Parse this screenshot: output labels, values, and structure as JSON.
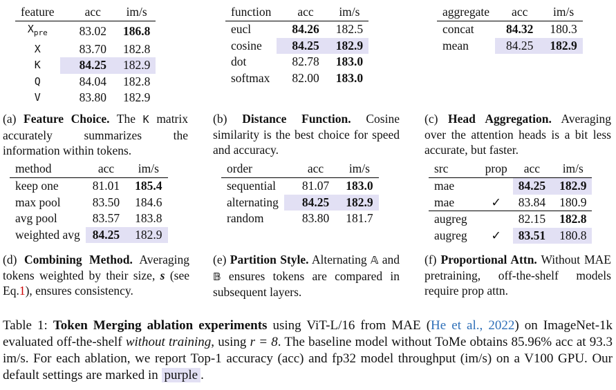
{
  "tables": {
    "a": {
      "headers": [
        "feature",
        "acc",
        "im/s"
      ],
      "rows": [
        {
          "name": "X",
          "sub": "pre",
          "acc": "83.02",
          "ims": "186.8"
        },
        {
          "name": "X",
          "acc": "83.70",
          "ims": "182.8"
        },
        {
          "name": "K",
          "acc": "84.25",
          "ims": "182.9"
        },
        {
          "name": "Q",
          "acc": "84.04",
          "ims": "182.8"
        },
        {
          "name": "V",
          "acc": "83.80",
          "ims": "182.9"
        }
      ],
      "caption": {
        "label": "(a)",
        "title": "Feature Choice.",
        "pre": "The",
        "code": "K",
        "post": "matrix accurately summarizes the information within tokens."
      }
    },
    "b": {
      "headers": [
        "function",
        "acc",
        "im/s"
      ],
      "rows": [
        {
          "name": "eucl",
          "acc": "84.26",
          "ims": "182.5"
        },
        {
          "name": "cosine",
          "acc": "84.25",
          "ims": "182.9"
        },
        {
          "name": "dot",
          "acc": "82.78",
          "ims": "183.0"
        },
        {
          "name": "softmax",
          "acc": "82.00",
          "ims": "183.0"
        }
      ],
      "caption": {
        "label": "(b)",
        "title": "Distance Function.",
        "text": "Cosine similarity is the best choice for speed and accuracy."
      }
    },
    "c": {
      "headers": [
        "aggregate",
        "acc",
        "im/s"
      ],
      "rows": [
        {
          "name": "concat",
          "acc": "84.32",
          "ims": "180.3"
        },
        {
          "name": "mean",
          "acc": "84.25",
          "ims": "182.9"
        }
      ],
      "caption": {
        "label": "(c)",
        "title": "Head Aggregation.",
        "text": "Averaging over the attention heads is a bit less accurate, but faster."
      }
    },
    "d": {
      "headers": [
        "method",
        "acc",
        "im/s"
      ],
      "rows": [
        {
          "name": "keep one",
          "acc": "81.01",
          "ims": "185.4"
        },
        {
          "name": "max pool",
          "acc": "83.50",
          "ims": "184.6"
        },
        {
          "name": "avg pool",
          "acc": "83.57",
          "ims": "183.8"
        },
        {
          "name": "weighted avg",
          "acc": "84.25",
          "ims": "182.9"
        }
      ],
      "caption": {
        "label": "(d)",
        "title": "Combining Method.",
        "pre": "Averaging tokens weighted by their size,",
        "sym": "s",
        "mid": "(see Eq.",
        "ref": "1",
        "post": "), ensures consistency."
      }
    },
    "e": {
      "headers": [
        "order",
        "acc",
        "im/s"
      ],
      "rows": [
        {
          "name": "sequential",
          "acc": "81.07",
          "ims": "183.0"
        },
        {
          "name": "alternating",
          "acc": "84.25",
          "ims": "182.9"
        },
        {
          "name": "random",
          "acc": "83.80",
          "ims": "181.7"
        }
      ],
      "caption": {
        "label": "(e)",
        "title": "Partition Style.",
        "pre": "Alternating",
        "setA": "𝔸",
        "and": "and",
        "setB": "𝔹",
        "post": "ensures tokens are compared in subsequent layers."
      }
    },
    "f": {
      "headers": [
        "src",
        "prop",
        "acc",
        "im/s"
      ],
      "rows": [
        {
          "name": "mae",
          "prop": "",
          "acc": "84.25",
          "ims": "182.9"
        },
        {
          "name": "mae",
          "prop": "✓",
          "acc": "83.84",
          "ims": "180.9"
        },
        {
          "name": "augreg",
          "prop": "",
          "acc": "82.15",
          "ims": "182.8"
        },
        {
          "name": "augreg",
          "prop": "✓",
          "acc": "83.51",
          "ims": "180.8"
        }
      ],
      "caption": {
        "label": "(f)",
        "title": "Proportional Attn.",
        "text": "Without MAE pretraining, off-the-shelf models require prop attn."
      }
    }
  },
  "main_caption": {
    "label": "Table 1:",
    "title": "Token Merging ablation experiments",
    "t1": "using ViT-L/16 from MAE (",
    "cite": "He et al., 2022",
    "t2": ") on ImageNet-1k evaluated off-the-shelf",
    "em": "without training",
    "t3": ", using",
    "math": "r = 8",
    "t4": ". The baseline model without ToMe obtains 85.96% acc at 93.3 im/s. For each ablation, we report Top-1 accuracy (acc) and fp32 model throughput (im/s) on a V100 GPU. Our default settings are marked in",
    "purple": "purple",
    "t5": "."
  }
}
